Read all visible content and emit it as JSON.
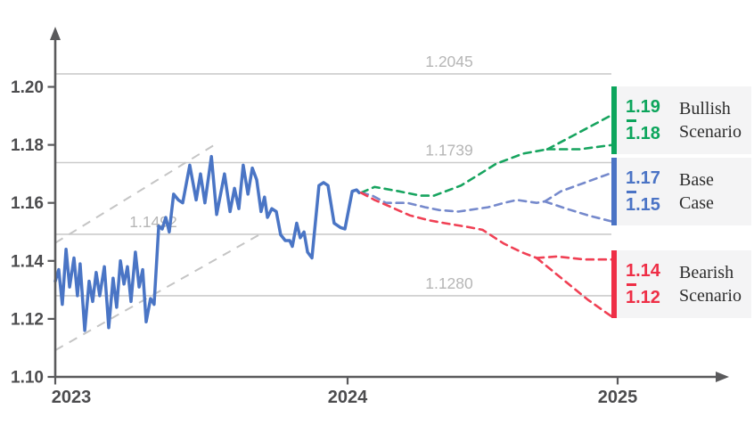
{
  "chart_data": {
    "type": "line",
    "description": "Exchange-rate history with bullish, base and bearish scenario projections",
    "colors": {
      "background": "#ffffff",
      "axis": "#5a5a5c",
      "tick_label": "#4c4c4e",
      "grid": "#cbcbcb",
      "grid_label": "#b6b6b6",
      "history": "#4a75c5",
      "channel": "#c5c5c5",
      "card_bg": "#f4f4f5",
      "card_text": "#2d2d2d"
    },
    "x_axis": {
      "ticks": [
        {
          "year": 2023,
          "label": "2023"
        },
        {
          "year": 2024,
          "label": "2024"
        },
        {
          "year": 2025,
          "label": "2025"
        }
      ],
      "range": [
        2023,
        2025.4
      ]
    },
    "y_axis": {
      "ticks": [
        {
          "value": 1.2,
          "label": "1.20"
        },
        {
          "value": 1.18,
          "label": "1.18"
        },
        {
          "value": 1.16,
          "label": "1.16"
        },
        {
          "value": 1.14,
          "label": "1.14"
        },
        {
          "value": 1.12,
          "label": "1.12"
        },
        {
          "value": 1.1,
          "label": "1.10"
        }
      ],
      "range": [
        1.1,
        1.22
      ]
    },
    "gridlines": [
      {
        "value": 1.2045,
        "label": "1.2045",
        "label_anchor": "center"
      },
      {
        "value": 1.1739,
        "label": "1.1739",
        "label_anchor": "center"
      },
      {
        "value": 1.1492,
        "label": "1.1492",
        "label_anchor": "left"
      },
      {
        "value": 1.128,
        "label": "1.1280",
        "label_anchor": "center"
      }
    ],
    "trend_channel": {
      "upper": [
        [
          2023.0,
          1.1462
        ],
        [
          2023.543,
          1.1799
        ]
      ],
      "lower": [
        [
          2023.0,
          1.1092
        ],
        [
          2023.701,
          1.1492
        ]
      ]
    },
    "history": {
      "name": "historical-rate",
      "points": [
        [
          2023.0,
          1.133
        ],
        [
          2023.012,
          1.137
        ],
        [
          2023.024,
          1.125
        ],
        [
          2023.037,
          1.144
        ],
        [
          2023.049,
          1.131
        ],
        [
          2023.064,
          1.141
        ],
        [
          2023.076,
          1.128
        ],
        [
          2023.085,
          1.139
        ],
        [
          2023.101,
          1.116
        ],
        [
          2023.116,
          1.133
        ],
        [
          2023.128,
          1.126
        ],
        [
          2023.14,
          1.136
        ],
        [
          2023.152,
          1.128
        ],
        [
          2023.168,
          1.138
        ],
        [
          2023.183,
          1.117
        ],
        [
          2023.198,
          1.134
        ],
        [
          2023.21,
          1.124
        ],
        [
          2023.223,
          1.14
        ],
        [
          2023.235,
          1.132
        ],
        [
          2023.247,
          1.138
        ],
        [
          2023.259,
          1.126
        ],
        [
          2023.274,
          1.143
        ],
        [
          2023.287,
          1.131
        ],
        [
          2023.299,
          1.137
        ],
        [
          2023.311,
          1.119
        ],
        [
          2023.326,
          1.127
        ],
        [
          2023.338,
          1.125
        ],
        [
          2023.354,
          1.152
        ],
        [
          2023.366,
          1.151
        ],
        [
          2023.378,
          1.155
        ],
        [
          2023.39,
          1.15
        ],
        [
          2023.405,
          1.163
        ],
        [
          2023.421,
          1.161
        ],
        [
          2023.436,
          1.16
        ],
        [
          2023.46,
          1.173
        ],
        [
          2023.482,
          1.161
        ],
        [
          2023.497,
          1.17
        ],
        [
          2023.512,
          1.16
        ],
        [
          2023.534,
          1.176
        ],
        [
          2023.552,
          1.156
        ],
        [
          2023.579,
          1.17
        ],
        [
          2023.598,
          1.157
        ],
        [
          2023.613,
          1.165
        ],
        [
          2023.628,
          1.158
        ],
        [
          2023.643,
          1.173
        ],
        [
          2023.659,
          1.163
        ],
        [
          2023.674,
          1.172
        ],
        [
          2023.689,
          1.168
        ],
        [
          2023.704,
          1.157
        ],
        [
          2023.716,
          1.162
        ],
        [
          2023.726,
          1.155
        ],
        [
          2023.741,
          1.158
        ],
        [
          2023.756,
          1.157
        ],
        [
          2023.771,
          1.149
        ],
        [
          2023.787,
          1.147
        ],
        [
          2023.802,
          1.147
        ],
        [
          2023.811,
          1.145
        ],
        [
          2023.826,
          1.153
        ],
        [
          2023.838,
          1.148
        ],
        [
          2023.851,
          1.15
        ],
        [
          2023.863,
          1.143
        ],
        [
          2023.878,
          1.141
        ],
        [
          2023.902,
          1.166
        ],
        [
          2023.918,
          1.167
        ],
        [
          2023.933,
          1.166
        ],
        [
          2023.954,
          1.153
        ],
        [
          2023.976,
          1.1515
        ],
        [
          2023.991,
          1.151
        ],
        [
          2024.017,
          1.164
        ],
        [
          2024.033,
          1.1645
        ],
        [
          2024.043,
          1.1635
        ]
      ]
    },
    "scenarios": [
      {
        "id": "bullish",
        "name": "Bullish Scenario",
        "name_lines": [
          "Bullish",
          "Scenario"
        ],
        "high": "1.19",
        "low": "1.18",
        "color": "#0ca55c",
        "line_color": "#17a45f",
        "trunk": [
          [
            2024.05,
            1.1635
          ],
          [
            2024.1,
            1.1655
          ],
          [
            2024.19,
            1.164
          ],
          [
            2024.27,
            1.1625
          ],
          [
            2024.32,
            1.1625
          ],
          [
            2024.42,
            1.166
          ],
          [
            2024.49,
            1.17
          ],
          [
            2024.55,
            1.1735
          ],
          [
            2024.65,
            1.177
          ],
          [
            2024.74,
            1.1785
          ]
        ],
        "branch_high": [
          [
            2024.74,
            1.1785
          ],
          [
            2024.983,
            1.1905
          ]
        ],
        "branch_low": [
          [
            2024.74,
            1.1785
          ],
          [
            2024.86,
            1.1785
          ],
          [
            2024.983,
            1.18
          ]
        ]
      },
      {
        "id": "base",
        "name": "Base Case",
        "name_lines": [
          "Base",
          "Case"
        ],
        "high": "1.17",
        "low": "1.15",
        "color": "#4a73c5",
        "line_color": "#7589cc",
        "trunk": [
          [
            2024.05,
            1.1635
          ],
          [
            2024.092,
            1.1625
          ],
          [
            2024.142,
            1.16
          ],
          [
            2024.221,
            1.16
          ],
          [
            2024.287,
            1.1585
          ],
          [
            2024.34,
            1.1575
          ],
          [
            2024.41,
            1.157
          ],
          [
            2024.52,
            1.1585
          ],
          [
            2024.58,
            1.16
          ],
          [
            2024.627,
            1.161
          ],
          [
            2024.7,
            1.16
          ],
          [
            2024.73,
            1.1605
          ]
        ],
        "branch_high": [
          [
            2024.73,
            1.1605
          ],
          [
            2024.79,
            1.164
          ],
          [
            2024.983,
            1.1705
          ]
        ],
        "branch_low": [
          [
            2024.73,
            1.1605
          ],
          [
            2024.81,
            1.158
          ],
          [
            2024.89,
            1.1557
          ],
          [
            2024.983,
            1.1535
          ]
        ]
      },
      {
        "id": "bearish",
        "name": "Bearish Scenario",
        "name_lines": [
          "Bearish",
          "Scenario"
        ],
        "high": "1.14",
        "low": "1.12",
        "color": "#ee2e46",
        "line_color": "#f04054",
        "trunk": [
          [
            2024.05,
            1.1635
          ],
          [
            2024.1,
            1.161
          ],
          [
            2024.165,
            1.1584
          ],
          [
            2024.23,
            1.1557
          ],
          [
            2024.3,
            1.154
          ],
          [
            2024.36,
            1.153
          ],
          [
            2024.45,
            1.1516
          ],
          [
            2024.5,
            1.1507
          ],
          [
            2024.578,
            1.146
          ],
          [
            2024.644,
            1.143
          ],
          [
            2024.7,
            1.141
          ]
        ],
        "branch_high": [
          [
            2024.7,
            1.141
          ],
          [
            2024.776,
            1.1415
          ],
          [
            2024.875,
            1.1405
          ],
          [
            2024.983,
            1.1405
          ]
        ],
        "branch_low": [
          [
            2024.7,
            1.141
          ],
          [
            2024.792,
            1.134
          ],
          [
            2024.891,
            1.1265
          ],
          [
            2024.983,
            1.1205
          ]
        ]
      }
    ]
  }
}
